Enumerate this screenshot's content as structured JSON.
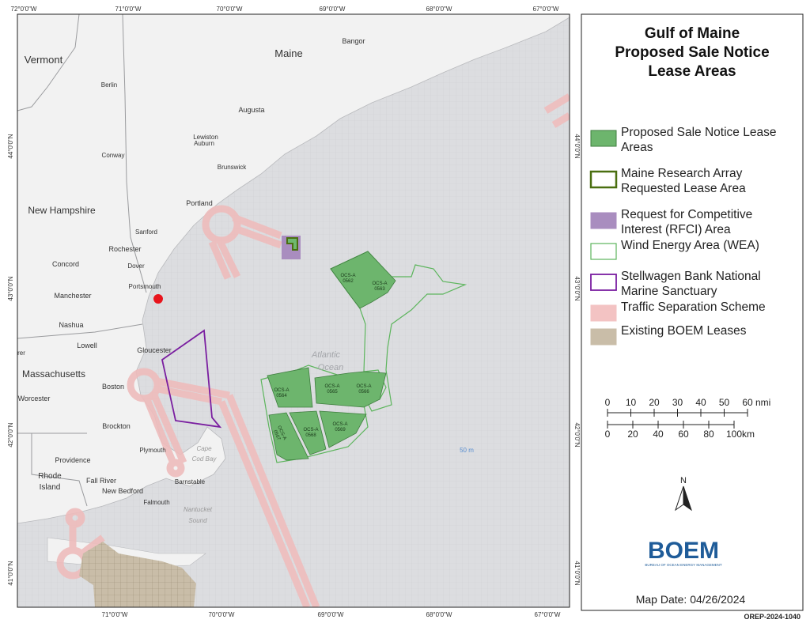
{
  "map": {
    "graticule": {
      "top": [
        "72°0'0\"W",
        "71°0'0\"W",
        "70°0'0\"W",
        "69°0'0\"W",
        "68°0'0\"W",
        "67°0'0\"W"
      ],
      "bottom": [
        "71°0'0\"W",
        "70°0'0\"W",
        "69°0'0\"W",
        "68°0'0\"W",
        "67°0'0\"W"
      ],
      "left": [
        "44°0'0\"N",
        "43°0'0\"N",
        "42°0'0\"N",
        "41°0'0\"N"
      ],
      "right": [
        "44°0'0\"N",
        "43°0'0\"N",
        "42°0'0\"N",
        "41°0'0\"N"
      ]
    },
    "places": [
      "Vermont",
      "Maine",
      "Bangor",
      "Berlin",
      "Augusta",
      "Lewiston",
      "Auburn",
      "Conway",
      "Brunswick",
      "Portland",
      "New Hampshire",
      "Sanford",
      "Rochester",
      "Dover",
      "Concord",
      "Portsmouth",
      "Manchester",
      "Nashua",
      "Lowell",
      "Gloucester",
      "Massachusetts",
      "Worcester",
      "Boston",
      "Brockton",
      "Plymouth",
      "Cape",
      "Cod Bay",
      "Providence",
      "Rhode",
      "Island",
      "Fall River",
      "New Bedford",
      "Barnstable",
      "Falmouth",
      "Nantucket",
      "Sound",
      "Atlantic",
      "Ocean",
      "50 m",
      "rer"
    ],
    "lease_labels": [
      [
        "OCS-A",
        "0562"
      ],
      [
        "OCS-A",
        "0563"
      ],
      [
        "OCS-A",
        "0564"
      ],
      [
        "OCS-A",
        "0565"
      ],
      [
        "OCS-A",
        "0566"
      ],
      [
        "OCS-A",
        "0567"
      ],
      [
        "OCS-A",
        "0568"
      ],
      [
        "OCS-A",
        "0569"
      ]
    ]
  },
  "legend": {
    "title": [
      "Gulf of Maine",
      "Proposed Sale Notice",
      "Lease Areas"
    ],
    "items": [
      [
        "Proposed Sale Notice Lease",
        "Areas"
      ],
      [
        "Maine Research Array",
        "Requested Lease Area"
      ],
      [
        "Request for Competitive",
        "Interest (RFCI) Area"
      ],
      [
        "Wind Energy Area (WEA)"
      ],
      [
        "Stellwagen Bank National",
        "Marine Sanctuary"
      ],
      [
        "Traffic Separation Scheme"
      ],
      [
        "Existing BOEM Leases"
      ]
    ],
    "scale_nmi": {
      "ticks": [
        0,
        10,
        20,
        30,
        40,
        50,
        60
      ],
      "unit": "nmi"
    },
    "scale_km": {
      "ticks": [
        0,
        20,
        40,
        60,
        80,
        100
      ],
      "unit": "km"
    },
    "north": "N",
    "logo": "BOEM",
    "logo_subtitle": "BUREAU OF OCEAN ENERGY MANAGEMENT",
    "map_date": "Map Date: 04/26/2024",
    "doc_id": "OREP-2024-1040"
  }
}
